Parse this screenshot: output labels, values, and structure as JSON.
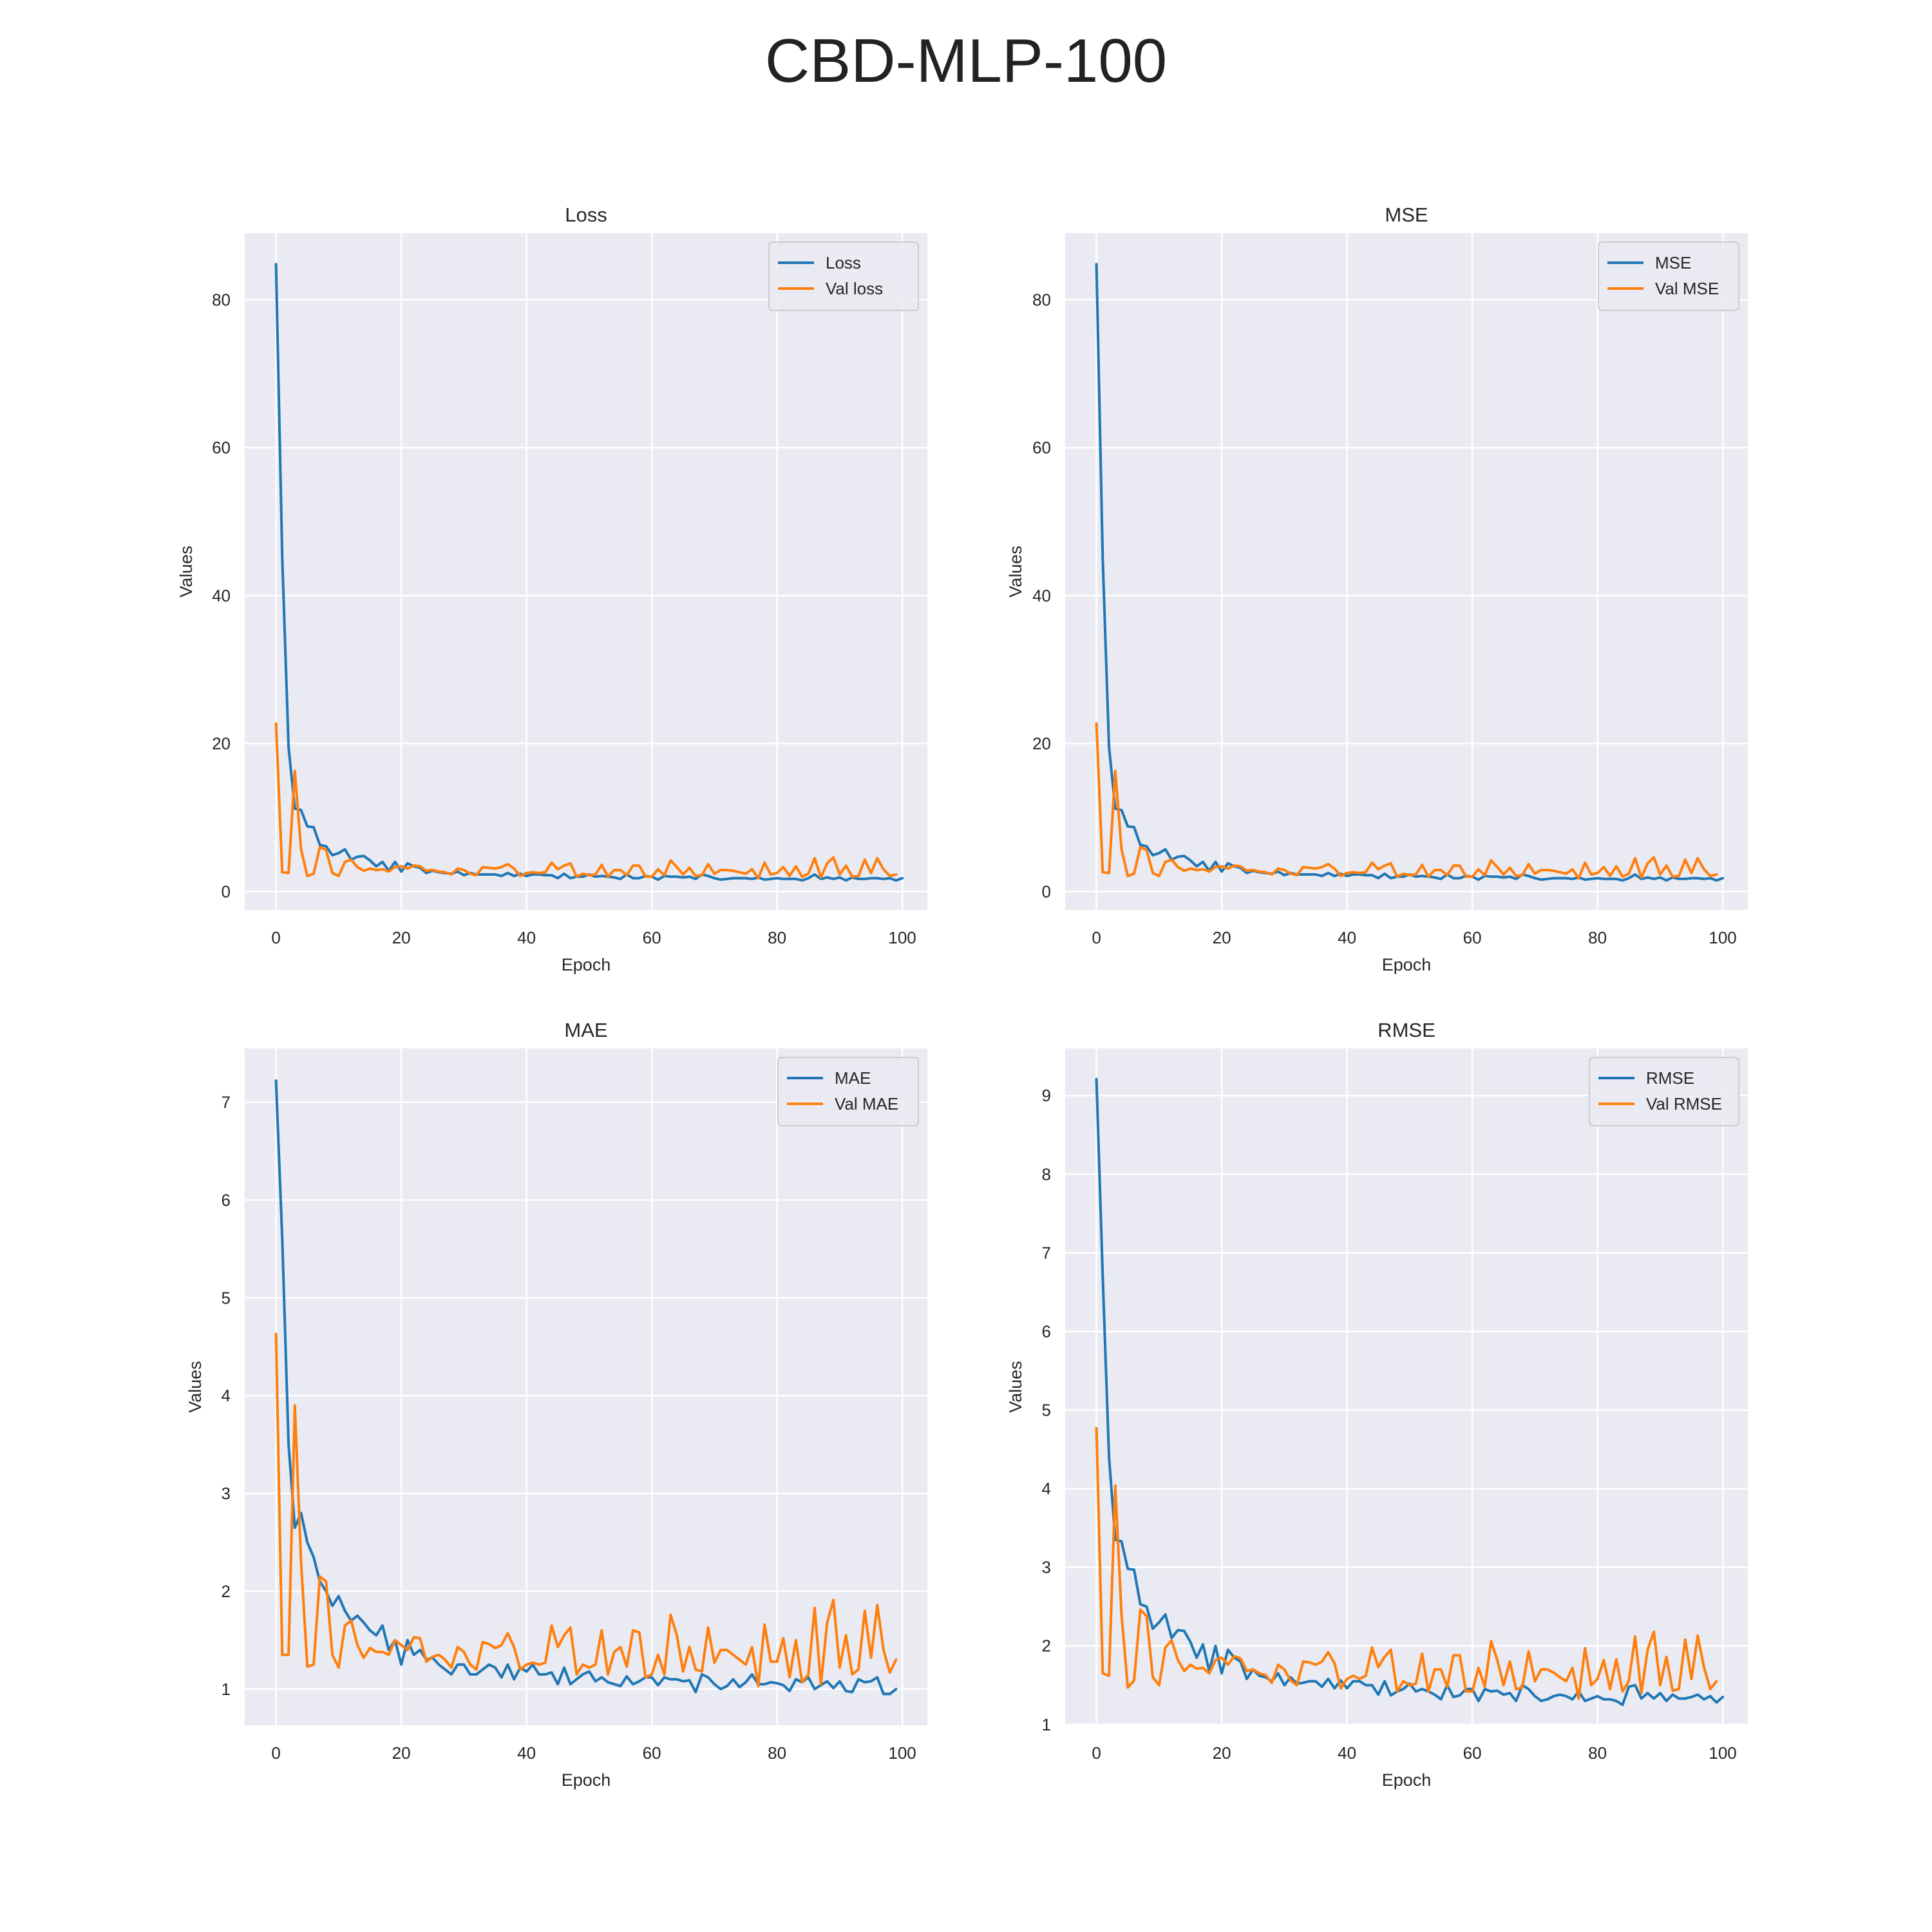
{
  "figure": {
    "title": "CBD-MLP-100"
  },
  "colors": {
    "train": "#1f77b4",
    "val": "#ff7f0e",
    "panel_bg": "#eaeaf2",
    "grid": "#ffffff",
    "text": "#262626"
  },
  "chart_data": [
    {
      "type": "line",
      "title": "Loss",
      "xlabel": "Epoch",
      "ylabel": "Values",
      "xlim": [
        -5,
        104
      ],
      "ylim": [
        -2.5,
        89
      ],
      "xticks": [
        0,
        20,
        40,
        60,
        80,
        100
      ],
      "yticks": [
        0,
        20,
        40,
        60,
        80
      ],
      "legend_position": "upper-right",
      "series": [
        {
          "name": "Loss",
          "color": "#1f77b4",
          "values": [
            84.8,
            45.0,
            19.5,
            11.2,
            11.0,
            8.8,
            8.7,
            6.3,
            6.1,
            4.9,
            5.2,
            5.7,
            4.3,
            4.7,
            4.8,
            4.2,
            3.4,
            4.0,
            2.8,
            4.0,
            2.7,
            3.8,
            3.4,
            3.2,
            2.5,
            2.8,
            2.6,
            2.5,
            2.4,
            2.7,
            2.2,
            2.5,
            2.3,
            2.3,
            2.3,
            2.3,
            2.1,
            2.5,
            2.1,
            2.4,
            2.1,
            2.3,
            2.3,
            2.2,
            2.2,
            1.8,
            2.4,
            1.8,
            2.0,
            2.0,
            2.3,
            2.0,
            2.1,
            2.0,
            1.9,
            1.7,
            2.3,
            1.8,
            1.8,
            2.1,
            2.0,
            1.6,
            2.1,
            2.0,
            2.0,
            1.9,
            2.0,
            1.7,
            2.3,
            2.1,
            1.8,
            1.6,
            1.7,
            1.8,
            1.8,
            1.8,
            1.7,
            1.9,
            1.6,
            1.7,
            1.8,
            1.7,
            1.7,
            1.7,
            1.5,
            1.8,
            2.3,
            1.7,
            1.9,
            1.7,
            1.9,
            1.5,
            1.9,
            1.7,
            1.7,
            1.8,
            1.8,
            1.7,
            1.8,
            1.5,
            1.8
          ]
        },
        {
          "name": "Val loss",
          "color": "#ff7f0e",
          "values": [
            22.7,
            2.6,
            2.5,
            16.3,
            5.7,
            2.1,
            2.4,
            6.0,
            5.6,
            2.5,
            2.1,
            4.0,
            4.3,
            3.3,
            2.8,
            3.1,
            2.9,
            3.0,
            2.7,
            3.3,
            3.4,
            3.1,
            3.5,
            3.4,
            2.8,
            2.9,
            2.7,
            2.6,
            2.3,
            3.1,
            2.9,
            2.4,
            2.2,
            3.3,
            3.2,
            3.1,
            3.3,
            3.7,
            3.1,
            2.1,
            2.5,
            2.6,
            2.5,
            2.6,
            3.9,
            3.0,
            3.5,
            3.8,
            2.0,
            2.4,
            2.2,
            2.3,
            3.6,
            2.0,
            2.9,
            2.9,
            2.2,
            3.5,
            3.5,
            2.0,
            2.0,
            3.0,
            2.2,
            4.2,
            3.3,
            2.3,
            3.2,
            2.1,
            2.2,
            3.7,
            2.4,
            2.9,
            2.9,
            2.8,
            2.6,
            2.4,
            3.0,
            1.8,
            3.9,
            2.3,
            2.5,
            3.3,
            2.1,
            3.4,
            2.0,
            2.4,
            4.5,
            1.9,
            3.8,
            4.6,
            2.3,
            3.5,
            2.0,
            2.1,
            4.3,
            2.5,
            4.5,
            3.0,
            2.1,
            2.3
          ]
        }
      ]
    },
    {
      "type": "line",
      "title": "MSE",
      "xlabel": "Epoch",
      "ylabel": "Values",
      "xlim": [
        -5,
        104
      ],
      "ylim": [
        -2.5,
        89
      ],
      "xticks": [
        0,
        20,
        40,
        60,
        80,
        100
      ],
      "yticks": [
        0,
        20,
        40,
        60,
        80
      ],
      "legend_position": "upper-right",
      "series": [
        {
          "name": "MSE",
          "color": "#1f77b4",
          "values": [
            84.8,
            45.0,
            19.5,
            11.2,
            11.0,
            8.8,
            8.7,
            6.3,
            6.1,
            4.9,
            5.2,
            5.7,
            4.3,
            4.7,
            4.8,
            4.2,
            3.4,
            4.0,
            2.8,
            4.0,
            2.7,
            3.8,
            3.4,
            3.2,
            2.5,
            2.8,
            2.6,
            2.5,
            2.4,
            2.7,
            2.2,
            2.5,
            2.3,
            2.3,
            2.3,
            2.3,
            2.1,
            2.5,
            2.1,
            2.4,
            2.1,
            2.3,
            2.3,
            2.2,
            2.2,
            1.8,
            2.4,
            1.8,
            2.0,
            2.0,
            2.3,
            2.0,
            2.1,
            2.0,
            1.9,
            1.7,
            2.3,
            1.8,
            1.8,
            2.1,
            2.0,
            1.6,
            2.1,
            2.0,
            2.0,
            1.9,
            2.0,
            1.7,
            2.3,
            2.1,
            1.8,
            1.6,
            1.7,
            1.8,
            1.8,
            1.8,
            1.7,
            1.9,
            1.6,
            1.7,
            1.8,
            1.7,
            1.7,
            1.7,
            1.5,
            1.8,
            2.3,
            1.7,
            1.9,
            1.7,
            1.9,
            1.5,
            1.9,
            1.7,
            1.7,
            1.8,
            1.8,
            1.7,
            1.8,
            1.5,
            1.8
          ]
        },
        {
          "name": "Val MSE",
          "color": "#ff7f0e",
          "values": [
            22.7,
            2.6,
            2.5,
            16.3,
            5.7,
            2.1,
            2.4,
            6.0,
            5.6,
            2.5,
            2.1,
            4.0,
            4.3,
            3.3,
            2.8,
            3.1,
            2.9,
            3.0,
            2.7,
            3.3,
            3.4,
            3.1,
            3.5,
            3.4,
            2.8,
            2.9,
            2.7,
            2.6,
            2.3,
            3.1,
            2.9,
            2.4,
            2.2,
            3.3,
            3.2,
            3.1,
            3.3,
            3.7,
            3.1,
            2.1,
            2.5,
            2.6,
            2.5,
            2.6,
            3.9,
            3.0,
            3.5,
            3.8,
            2.0,
            2.4,
            2.2,
            2.3,
            3.6,
            2.0,
            2.9,
            2.9,
            2.2,
            3.5,
            3.5,
            2.0,
            2.0,
            3.0,
            2.2,
            4.2,
            3.3,
            2.3,
            3.2,
            2.1,
            2.2,
            3.7,
            2.4,
            2.9,
            2.9,
            2.8,
            2.6,
            2.4,
            3.0,
            1.8,
            3.9,
            2.3,
            2.5,
            3.3,
            2.1,
            3.4,
            2.0,
            2.4,
            4.5,
            1.9,
            3.8,
            4.6,
            2.3,
            3.5,
            2.0,
            2.1,
            4.3,
            2.5,
            4.5,
            3.0,
            2.1,
            2.3
          ]
        }
      ]
    },
    {
      "type": "line",
      "title": "MAE",
      "xlabel": "Epoch",
      "ylabel": "Values",
      "xlim": [
        -5,
        104
      ],
      "ylim": [
        0.63,
        7.55
      ],
      "xticks": [
        0,
        20,
        40,
        60,
        80,
        100
      ],
      "yticks": [
        1,
        2,
        3,
        4,
        5,
        6,
        7
      ],
      "legend_position": "upper-right",
      "series": [
        {
          "name": "MAE",
          "color": "#1f77b4",
          "values": [
            7.22,
            5.6,
            3.5,
            2.65,
            2.8,
            2.5,
            2.35,
            2.1,
            2.0,
            1.85,
            1.95,
            1.8,
            1.7,
            1.75,
            1.68,
            1.6,
            1.55,
            1.65,
            1.4,
            1.5,
            1.25,
            1.5,
            1.35,
            1.4,
            1.3,
            1.32,
            1.25,
            1.2,
            1.15,
            1.25,
            1.25,
            1.15,
            1.15,
            1.2,
            1.25,
            1.22,
            1.12,
            1.25,
            1.1,
            1.22,
            1.18,
            1.25,
            1.15,
            1.15,
            1.17,
            1.05,
            1.22,
            1.05,
            1.1,
            1.15,
            1.18,
            1.08,
            1.12,
            1.07,
            1.05,
            1.03,
            1.13,
            1.05,
            1.08,
            1.12,
            1.12,
            1.04,
            1.12,
            1.1,
            1.1,
            1.08,
            1.09,
            0.97,
            1.15,
            1.12,
            1.05,
            1.0,
            1.03,
            1.1,
            1.02,
            1.07,
            1.15,
            1.05,
            1.05,
            1.07,
            1.06,
            1.04,
            0.98,
            1.1,
            1.07,
            1.12,
            1.0,
            1.04,
            1.08,
            1.01,
            1.08,
            0.98,
            0.97,
            1.1,
            1.07,
            1.08,
            1.12,
            0.95,
            0.95,
            1.0
          ]
        },
        {
          "name": "Val MAE",
          "color": "#ff7f0e",
          "values": [
            4.63,
            1.35,
            1.35,
            3.9,
            2.3,
            1.23,
            1.25,
            2.15,
            2.1,
            1.35,
            1.22,
            1.65,
            1.7,
            1.45,
            1.32,
            1.42,
            1.38,
            1.38,
            1.35,
            1.5,
            1.45,
            1.4,
            1.53,
            1.52,
            1.28,
            1.33,
            1.35,
            1.3,
            1.22,
            1.43,
            1.38,
            1.25,
            1.2,
            1.48,
            1.46,
            1.42,
            1.45,
            1.57,
            1.43,
            1.2,
            1.25,
            1.27,
            1.25,
            1.27,
            1.65,
            1.43,
            1.55,
            1.63,
            1.15,
            1.25,
            1.22,
            1.25,
            1.6,
            1.15,
            1.38,
            1.43,
            1.23,
            1.6,
            1.58,
            1.12,
            1.15,
            1.35,
            1.15,
            1.76,
            1.55,
            1.18,
            1.43,
            1.2,
            1.18,
            1.63,
            1.27,
            1.4,
            1.4,
            1.35,
            1.3,
            1.25,
            1.43,
            1.03,
            1.66,
            1.28,
            1.28,
            1.52,
            1.12,
            1.5,
            1.07,
            1.15,
            1.83,
            1.05,
            1.68,
            1.91,
            1.22,
            1.55,
            1.15,
            1.2,
            1.8,
            1.32,
            1.86,
            1.4,
            1.17,
            1.3
          ]
        }
      ]
    },
    {
      "type": "line",
      "title": "RMSE",
      "xlabel": "Epoch",
      "ylabel": "Values",
      "xlim": [
        -5,
        104
      ],
      "ylim": [
        0.99,
        9.6
      ],
      "xticks": [
        0,
        20,
        40,
        60,
        80,
        100
      ],
      "yticks": [
        1,
        2,
        3,
        4,
        5,
        6,
        7,
        8,
        9
      ],
      "legend_position": "upper-right",
      "series": [
        {
          "name": "RMSE",
          "color": "#1f77b4",
          "values": [
            9.21,
            6.7,
            4.4,
            3.35,
            3.33,
            2.98,
            2.97,
            2.53,
            2.5,
            2.22,
            2.3,
            2.4,
            2.1,
            2.2,
            2.19,
            2.05,
            1.85,
            2.02,
            1.68,
            2.0,
            1.65,
            1.95,
            1.85,
            1.8,
            1.58,
            1.7,
            1.62,
            1.6,
            1.55,
            1.65,
            1.5,
            1.6,
            1.52,
            1.53,
            1.55,
            1.55,
            1.48,
            1.58,
            1.46,
            1.56,
            1.46,
            1.55,
            1.55,
            1.5,
            1.5,
            1.38,
            1.55,
            1.37,
            1.42,
            1.45,
            1.52,
            1.42,
            1.45,
            1.42,
            1.38,
            1.32,
            1.5,
            1.35,
            1.37,
            1.45,
            1.45,
            1.3,
            1.45,
            1.42,
            1.43,
            1.38,
            1.4,
            1.3,
            1.5,
            1.45,
            1.36,
            1.3,
            1.32,
            1.36,
            1.38,
            1.36,
            1.32,
            1.42,
            1.3,
            1.33,
            1.36,
            1.32,
            1.32,
            1.3,
            1.25,
            1.48,
            1.5,
            1.33,
            1.4,
            1.33,
            1.4,
            1.3,
            1.38,
            1.33,
            1.33,
            1.35,
            1.38,
            1.32,
            1.36,
            1.28,
            1.35
          ]
        },
        {
          "name": "Val RMSE",
          "color": "#ff7f0e",
          "values": [
            4.77,
            1.65,
            1.62,
            4.04,
            2.4,
            1.47,
            1.56,
            2.46,
            2.38,
            1.6,
            1.5,
            1.98,
            2.07,
            1.82,
            1.68,
            1.76,
            1.71,
            1.72,
            1.65,
            1.82,
            1.85,
            1.76,
            1.87,
            1.84,
            1.68,
            1.7,
            1.65,
            1.63,
            1.53,
            1.76,
            1.7,
            1.56,
            1.5,
            1.8,
            1.79,
            1.76,
            1.8,
            1.92,
            1.78,
            1.46,
            1.58,
            1.62,
            1.58,
            1.62,
            1.98,
            1.73,
            1.86,
            1.95,
            1.42,
            1.55,
            1.5,
            1.52,
            1.9,
            1.42,
            1.7,
            1.7,
            1.48,
            1.88,
            1.88,
            1.42,
            1.42,
            1.72,
            1.48,
            2.06,
            1.82,
            1.5,
            1.8,
            1.45,
            1.47,
            1.93,
            1.55,
            1.7,
            1.7,
            1.66,
            1.6,
            1.55,
            1.72,
            1.33,
            1.97,
            1.5,
            1.58,
            1.82,
            1.45,
            1.83,
            1.42,
            1.55,
            2.12,
            1.4,
            1.95,
            2.18,
            1.5,
            1.86,
            1.43,
            1.45,
            2.08,
            1.58,
            2.13,
            1.73,
            1.45,
            1.55
          ]
        }
      ]
    }
  ]
}
